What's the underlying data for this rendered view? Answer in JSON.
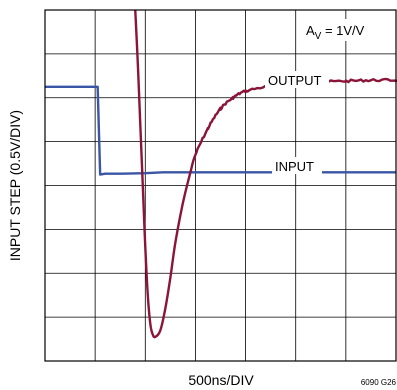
{
  "chart_data": {
    "type": "line",
    "xlabel": "500ns/DIV",
    "ylabel": "INPUT STEP (0.5V/DIV)",
    "annotations": {
      "gain": {
        "prefix": "A",
        "subscript": "V",
        "suffix": " = 1V/V"
      },
      "figure_id": "6090 G26"
    },
    "grid": true,
    "x_divisions": 7,
    "y_divisions": 8,
    "xlim": [
      0,
      7
    ],
    "ylim": [
      0,
      8
    ],
    "series": [
      {
        "name": "INPUT",
        "color": "#3a55a5",
        "x": [
          0,
          1.05,
          1.1,
          1.2,
          1.5,
          2.0,
          2.35,
          2.5,
          3.0,
          5.0,
          7.0
        ],
        "y": [
          6.25,
          6.25,
          4.25,
          4.27,
          4.27,
          4.28,
          4.3,
          4.3,
          4.3,
          4.3,
          4.3
        ]
      },
      {
        "name": "OUTPUT",
        "color": "#8a1538",
        "x": [
          1.8,
          1.85,
          1.9,
          1.95,
          2.0,
          2.05,
          2.1,
          2.15,
          2.2,
          2.3,
          2.4,
          2.5,
          2.6,
          2.75,
          2.9,
          3.0,
          3.25,
          3.5,
          3.75,
          4.0,
          4.5,
          5.0,
          5.5,
          6.0,
          6.5,
          7.0
        ],
        "y": [
          8.0,
          6.8,
          5.4,
          4.0,
          2.6,
          1.5,
          0.85,
          0.6,
          0.55,
          0.7,
          1.2,
          1.9,
          2.7,
          3.6,
          4.3,
          4.7,
          5.3,
          5.75,
          6.0,
          6.15,
          6.27,
          6.32,
          6.36,
          6.38,
          6.4,
          6.4
        ]
      }
    ],
    "series_labels": {
      "output": "OUTPUT",
      "input": "INPUT"
    }
  }
}
